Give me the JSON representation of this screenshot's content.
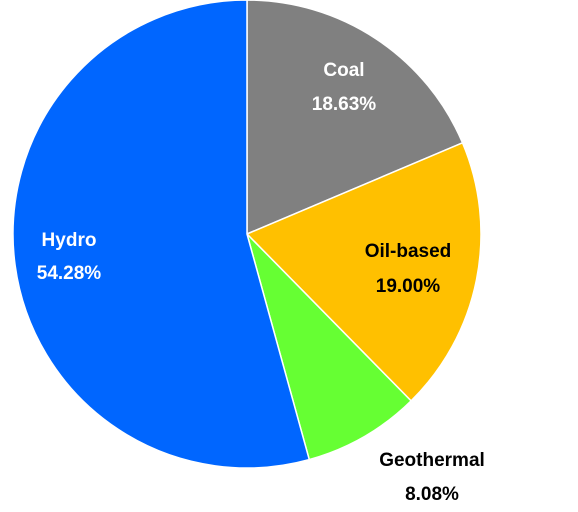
{
  "chart_data": {
    "type": "pie",
    "title": "",
    "slices": [
      {
        "label": "Coal",
        "value": 18.63,
        "value_label": "18.63%",
        "color": "#808080",
        "text_color": "#ffffff"
      },
      {
        "label": "Oil-based",
        "value": 19.0,
        "value_label": "19.00%",
        "color": "#ffc000",
        "text_color": "#000000"
      },
      {
        "label": "Geothermal",
        "value": 8.08,
        "value_label": "8.08%",
        "color": "#66ff33",
        "text_color": "#000000"
      },
      {
        "label": "Hydro",
        "value": 54.28,
        "value_label": "54.28%",
        "color": "#0066ff",
        "text_color": "#ffffff"
      }
    ],
    "start_angle": "12 o'clock",
    "direction": "clockwise",
    "legend": "none"
  }
}
